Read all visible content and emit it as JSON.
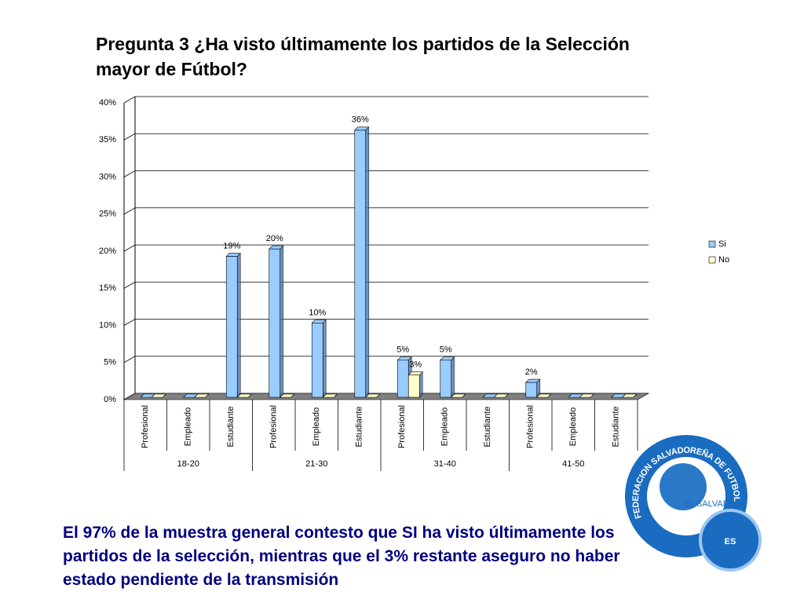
{
  "chart_data": {
    "type": "bar",
    "title_lead": "Pregunta 3",
    "title": "¿Ha visto últimamente los partidos de la Selección mayor de Fútbol?",
    "categories": [
      "Profesional",
      "Empleado",
      "Estudiante",
      "Profesional",
      "Empleado",
      "Estudiante",
      "Profesional",
      "Empleado",
      "Estudiante",
      "Profesional",
      "Empleado",
      "Estudiante"
    ],
    "groups": [
      "18-20",
      "21-30",
      "31-40",
      "41-50"
    ],
    "series": [
      {
        "name": "Si",
        "color": "#99ccff",
        "values": [
          0,
          0,
          19,
          20,
          10,
          36,
          5,
          5,
          0,
          2,
          0,
          0
        ],
        "value_labels": [
          null,
          null,
          "19%",
          "20%",
          "10%",
          "36%",
          "5%",
          "5%",
          null,
          "2%",
          null,
          null
        ]
      },
      {
        "name": "No",
        "color": "#ffffcc",
        "values": [
          0,
          0,
          0,
          0,
          0,
          0,
          3,
          0,
          0,
          0,
          0,
          0
        ],
        "value_labels": [
          null,
          null,
          null,
          null,
          null,
          null,
          "3%",
          null,
          null,
          null,
          null,
          null
        ]
      }
    ],
    "ylim": [
      0,
      40
    ],
    "yticks": [
      {
        "value": 0,
        "label": "0%"
      },
      {
        "value": 5,
        "label": "5%"
      },
      {
        "value": 10,
        "label": "10%"
      },
      {
        "value": 15,
        "label": "15%"
      },
      {
        "value": 20,
        "label": "20%"
      },
      {
        "value": 25,
        "label": "25%"
      },
      {
        "value": 30,
        "label": "30%"
      },
      {
        "value": 35,
        "label": "35%"
      },
      {
        "value": 40,
        "label": "40%"
      }
    ],
    "grid": true,
    "legend": "right"
  },
  "footnote": "El 97% de la muestra general contesto que SI ha visto últimamente los partidos de la selección, mientras que el 3% restante aseguro no haber estado pendiente de la transmisión",
  "logo": {
    "ring": "FEDERACION SALVADOREÑA DE FUTBOL",
    "country": "EL SALVADOR",
    "initials": "ES"
  }
}
